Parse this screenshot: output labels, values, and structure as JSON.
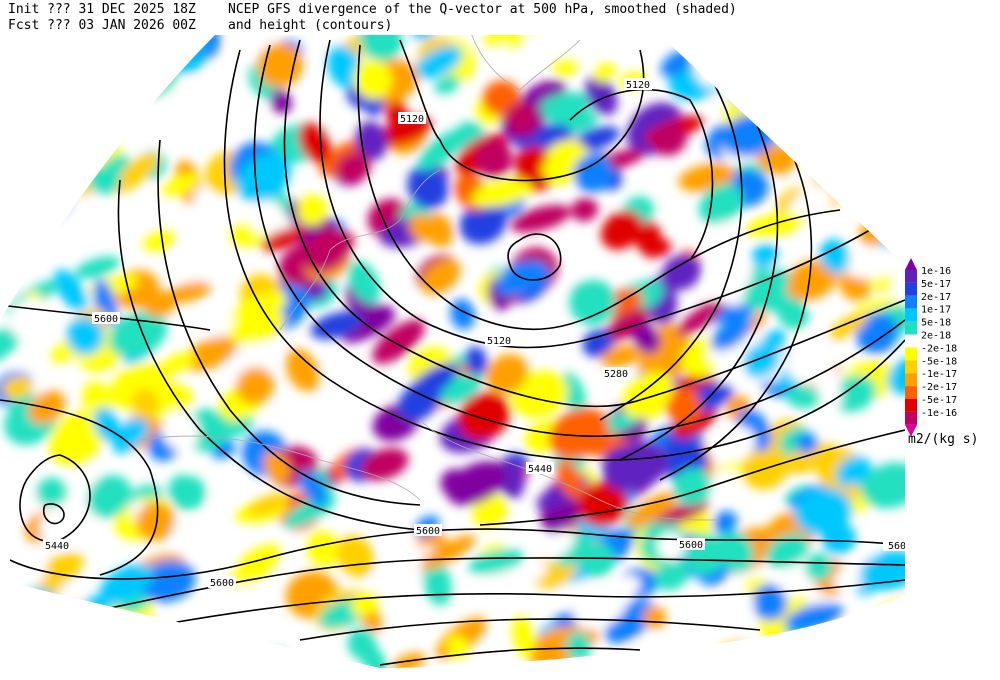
{
  "header": {
    "init": "Init  ??? 31 DEC 2025 18Z",
    "fcst": "Fcst ??? 03 JAN 2026 00Z",
    "title": "NCEP GFS divergence of the Q-vector at 500 hPa, smoothed (shaded)",
    "subtitle": "and height (contours)"
  },
  "contour_labels": [
    "5600",
    "5120",
    "5120",
    "5120",
    "5280",
    "5440",
    "5600",
    "5600",
    "5440",
    "5600",
    "560"
  ],
  "legend": {
    "labels": [
      "1e-16",
      "5e-17",
      "2e-17",
      "1e-17",
      "5e-18",
      "2e-18",
      "-2e-18",
      "-5e-18",
      "-1e-17",
      "-2e-17",
      "-5e-17",
      "-1e-16"
    ],
    "units": "m2/(kg s)"
  }
}
